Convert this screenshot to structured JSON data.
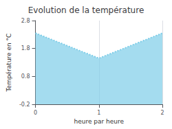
{
  "chart_data": {
    "type": "area",
    "title": "Evolution de la température",
    "xlabel": "heure par heure",
    "ylabel": "Température en °C",
    "x": [
      0,
      1,
      2
    ],
    "values": [
      2.35,
      1.45,
      2.35
    ],
    "color": "#7ecde8",
    "line_style": "dotted",
    "xlim": [
      0,
      2
    ],
    "ylim": [
      -0.2,
      2.8
    ],
    "xticks": [
      0,
      1,
      2
    ],
    "yticks": [
      -0.2,
      0.8,
      1.8,
      2.8
    ],
    "grid": "x"
  }
}
